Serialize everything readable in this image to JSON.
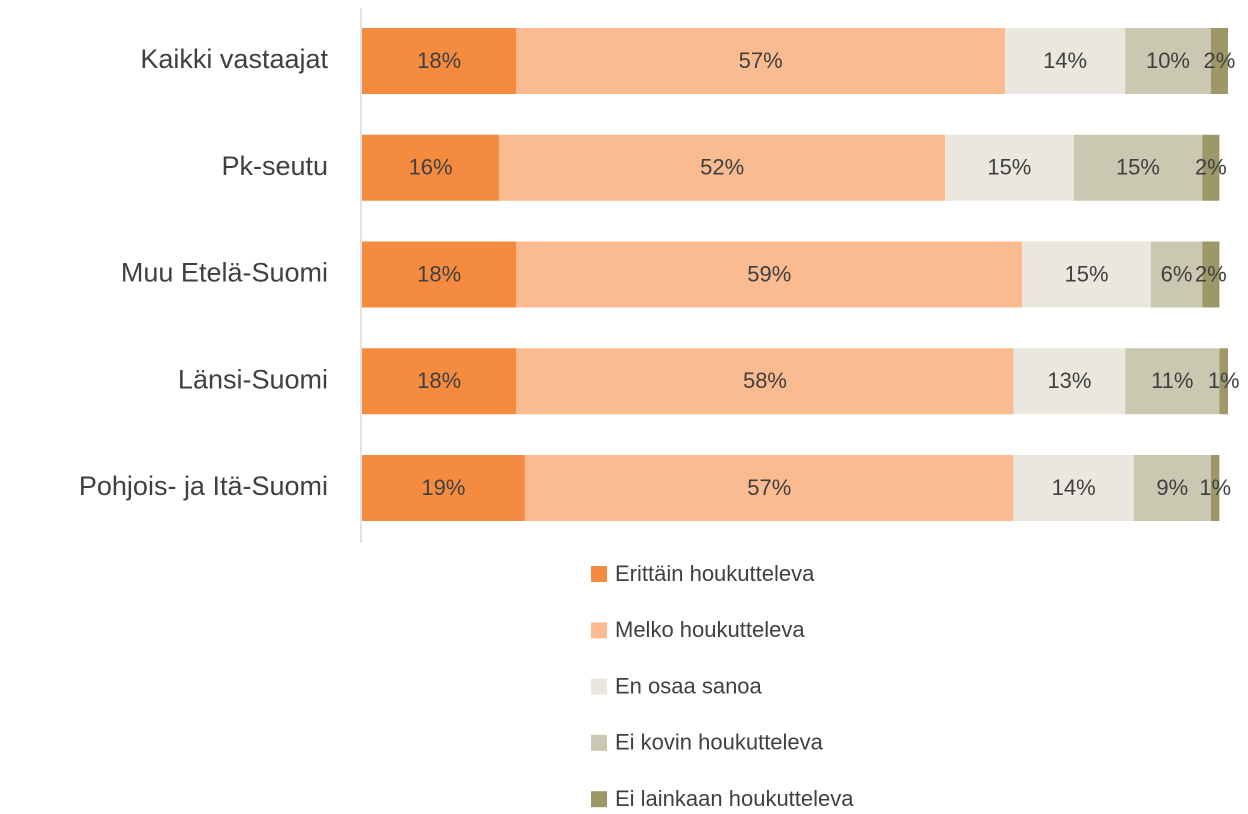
{
  "chart_data": {
    "type": "stacked_bar_horizontal",
    "categories": [
      "Kaikki vastaajat",
      "Pk-seutu",
      "Muu Etelä-Suomi",
      "Länsi-Suomi",
      "Pohjois- ja Itä-Suomi"
    ],
    "series": [
      {
        "name": "Erittäin houkutteleva",
        "color": "#f58b3f",
        "values": [
          18,
          16,
          18,
          18,
          19
        ],
        "value_labels": [
          "18%",
          "16%",
          "18%",
          "18%",
          "19%"
        ]
      },
      {
        "name": "Melko houkutteleva",
        "color": "#fbbb91",
        "values": [
          57,
          52,
          59,
          58,
          57
        ],
        "value_labels": [
          "57%",
          "52%",
          "59%",
          "58%",
          "57%"
        ]
      },
      {
        "name": "En osaa sanoa",
        "color": "#e9e7de",
        "values": [
          14,
          15,
          15,
          13,
          14
        ],
        "value_labels": [
          "14%",
          "15%",
          "15%",
          "13%",
          "14%"
        ]
      },
      {
        "name": "Ei kovin houkutteleva",
        "color": "#cbc8b2",
        "values": [
          10,
          15,
          6,
          11,
          9
        ],
        "value_labels": [
          "10%",
          "15%",
          "6%",
          "11%",
          "9%"
        ]
      },
      {
        "name": "Ei lainkaan houkutteleva",
        "color": "#9e9868",
        "values": [
          2,
          2,
          2,
          1,
          1
        ],
        "value_labels": [
          "2%",
          "2%",
          "2%",
          "1%",
          "1%"
        ]
      }
    ],
    "legend": "bottom"
  }
}
